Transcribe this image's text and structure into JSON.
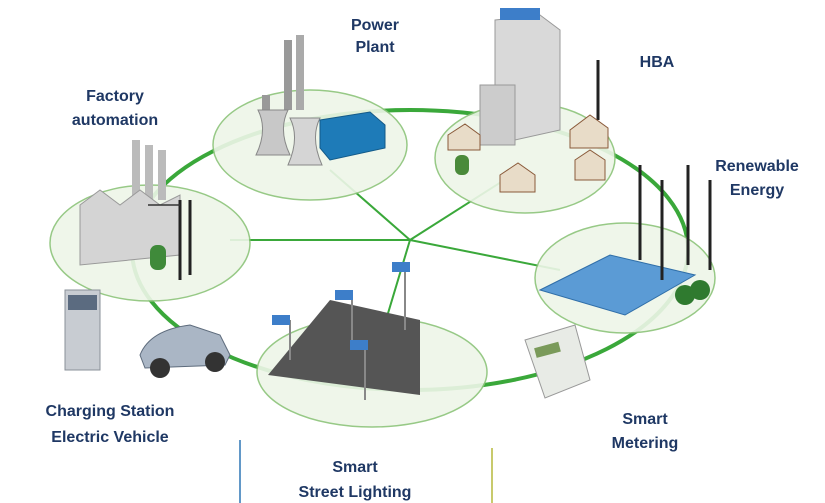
{
  "nodes": [
    {
      "lines": [
        "Power",
        "Plant"
      ]
    },
    {
      "lines": [
        "HBA"
      ]
    },
    {
      "lines": [
        "Factory",
        "automation"
      ]
    },
    {
      "lines": [
        "Renewable",
        "Energy"
      ]
    },
    {
      "lines": [
        "Charging Station",
        "Electric Vehicle"
      ]
    },
    {
      "lines": [
        "Smart",
        "Metering"
      ]
    },
    {
      "lines": [
        "Smart",
        "Street Lighting"
      ]
    }
  ]
}
